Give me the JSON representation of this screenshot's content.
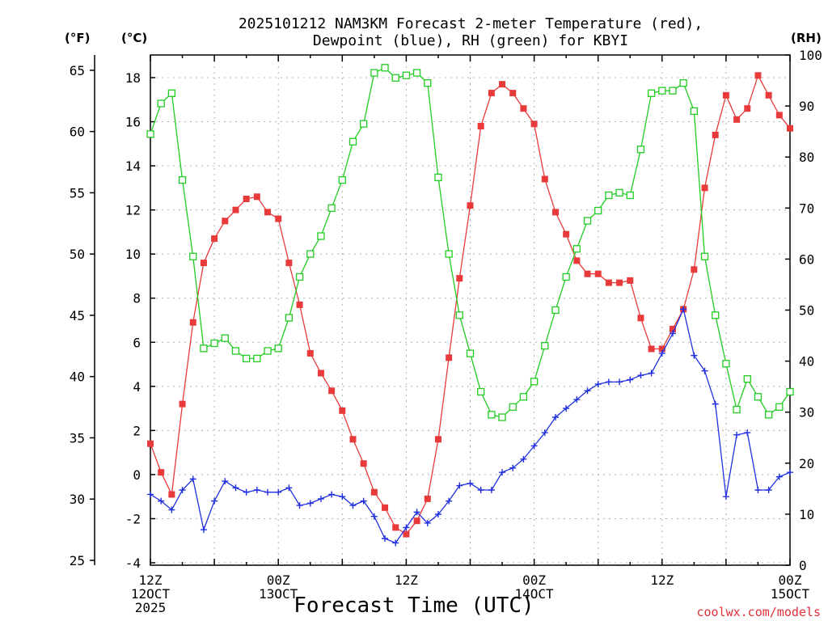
{
  "title_line1": "2025101212 NAM3KM Forecast 2-meter Temperature (red),",
  "title_line2": "Dewpoint (blue), RH (green) for KBYI",
  "units": {
    "f": "(°F)",
    "c": "(°C)",
    "rh": "(RH)"
  },
  "xlabel": "Forecast Time (UTC)",
  "credit": "coolwx.com/models",
  "colors": {
    "temperature": "#e83a3a",
    "dewpoint": "#2030e0",
    "rh": "#22cc22"
  },
  "chart_data": {
    "type": "line",
    "x_hours_from_start": [
      0,
      1,
      2,
      3,
      4,
      5,
      6,
      7,
      8,
      9,
      10,
      11,
      12,
      13,
      14,
      15,
      16,
      17,
      18,
      19,
      20,
      21,
      22,
      23,
      24,
      25,
      26,
      27,
      28,
      29,
      30,
      31,
      32,
      33,
      34,
      35,
      36,
      37,
      38,
      39,
      40,
      41,
      42,
      43,
      44,
      45,
      46,
      47,
      48,
      49,
      50,
      51,
      52,
      53,
      54,
      55,
      56,
      57,
      58,
      59,
      60
    ],
    "x_tick_labels": [
      {
        "hour": 0,
        "lines": [
          "12Z",
          "12OCT",
          "2025"
        ]
      },
      {
        "hour": 12,
        "lines": [
          "00Z",
          "13OCT"
        ]
      },
      {
        "hour": 24,
        "lines": [
          "12Z"
        ]
      },
      {
        "hour": 36,
        "lines": [
          "00Z",
          "14OCT"
        ]
      },
      {
        "hour": 48,
        "lines": [
          "12Z"
        ]
      },
      {
        "hour": 60,
        "lines": [
          "00Z",
          "15OCT"
        ]
      }
    ],
    "celsius_ticks": [
      "-4",
      "-2",
      "0",
      "2",
      "4",
      "6",
      "8",
      "10",
      "12",
      "14",
      "16",
      "18"
    ],
    "fahrenheit_ticks": [
      "25",
      "30",
      "35",
      "40",
      "45",
      "50",
      "55",
      "60",
      "65"
    ],
    "rh_ticks": [
      "0",
      "10",
      "20",
      "30",
      "40",
      "50",
      "60",
      "70",
      "80",
      "90",
      "100"
    ],
    "ylim_celsius": [
      -4,
      19
    ],
    "ylim_rh": [
      0,
      100
    ],
    "grid": true,
    "series": [
      {
        "name": "2-meter Temperature",
        "axis": "celsius",
        "marker": "filled-square",
        "values": [
          1.4,
          0.1,
          -0.9,
          3.2,
          6.9,
          9.6,
          10.7,
          11.5,
          12.0,
          12.5,
          12.6,
          11.9,
          11.6,
          9.6,
          7.7,
          5.5,
          4.6,
          3.8,
          2.9,
          1.6,
          0.5,
          -0.8,
          -1.5,
          -2.4,
          -2.7,
          -2.1,
          -1.1,
          1.6,
          5.3,
          8.9,
          12.2,
          15.8,
          17.3,
          17.7,
          17.3,
          16.6,
          15.9,
          13.4,
          11.9,
          10.9,
          9.7,
          9.1,
          9.1,
          8.7,
          8.7,
          8.8,
          7.1,
          5.7,
          5.7,
          6.6,
          7.5,
          9.3,
          13.0,
          15.4,
          17.2,
          16.1,
          16.6,
          18.1,
          17.2,
          16.3,
          15.7
        ]
      },
      {
        "name": "Dewpoint",
        "axis": "celsius",
        "marker": "plus",
        "values": [
          -0.9,
          -1.2,
          -1.6,
          -0.7,
          -0.2,
          -2.5,
          -1.2,
          -0.3,
          -0.6,
          -0.8,
          -0.7,
          -0.8,
          -0.8,
          -0.6,
          -1.4,
          -1.3,
          -1.1,
          -0.9,
          -1.0,
          -1.4,
          -1.2,
          -1.9,
          -2.9,
          -3.1,
          -2.4,
          -1.7,
          -2.2,
          -1.8,
          -1.2,
          -0.5,
          -0.4,
          -0.7,
          -0.7,
          0.1,
          0.3,
          0.7,
          1.3,
          1.9,
          2.6,
          3.0,
          3.4,
          3.8,
          4.1,
          4.2,
          4.2,
          4.3,
          4.5,
          4.6,
          5.5,
          6.4,
          7.5,
          5.4,
          4.7,
          3.2,
          -1.0,
          1.8,
          1.9,
          -0.7,
          -0.7,
          -0.1,
          0.1
        ]
      },
      {
        "name": "RH",
        "axis": "rh",
        "marker": "open-square",
        "values": [
          84.5,
          90.5,
          92.5,
          75.5,
          60.5,
          42.5,
          43.5,
          44.5,
          42.0,
          40.5,
          40.5,
          42.0,
          42.5,
          48.5,
          56.5,
          61.0,
          64.5,
          70.0,
          75.5,
          83.0,
          86.5,
          96.5,
          97.5,
          95.5,
          96.0,
          96.5,
          94.5,
          76.0,
          61.0,
          49.0,
          41.5,
          34.0,
          29.5,
          29.0,
          31.0,
          33.0,
          36.0,
          43.0,
          50.0,
          56.5,
          62.0,
          67.5,
          69.5,
          72.5,
          73.0,
          72.5,
          81.5,
          92.5,
          93.0,
          93.0,
          94.5,
          89.0,
          60.5,
          49.0,
          39.5,
          30.5,
          36.5,
          33.0,
          29.5,
          31.0,
          34.0
        ]
      }
    ]
  }
}
